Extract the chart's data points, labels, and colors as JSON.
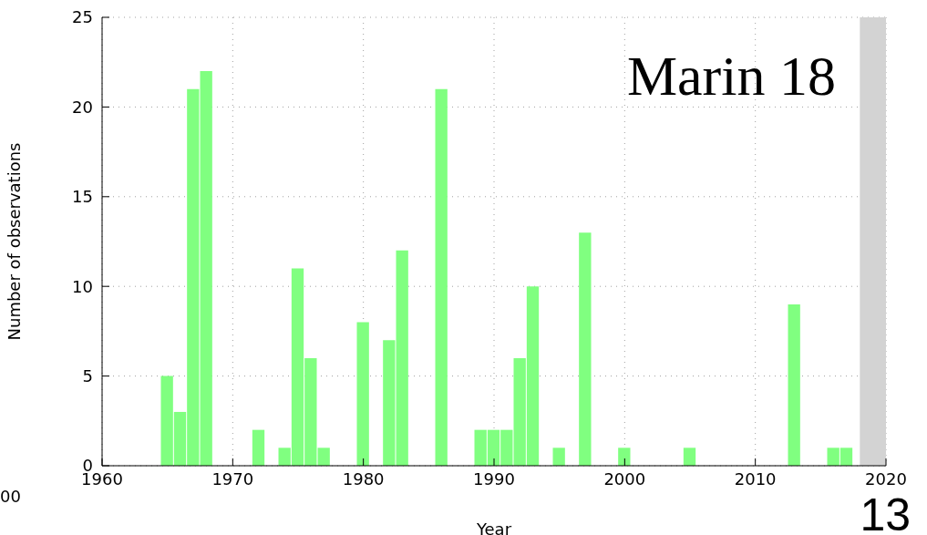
{
  "chart_data": {
    "type": "bar",
    "title": "Marin 18",
    "xlabel": "Year",
    "ylabel": "Number of observations",
    "x": [
      1965,
      1966,
      1967,
      1968,
      1972,
      1974,
      1975,
      1976,
      1977,
      1980,
      1982,
      1983,
      1986,
      1989,
      1990,
      1991,
      1992,
      1993,
      1995,
      1997,
      2000,
      2005,
      2013,
      2016,
      2017
    ],
    "values": [
      5,
      3,
      21,
      22,
      2,
      1,
      11,
      6,
      1,
      8,
      7,
      12,
      21,
      2,
      2,
      2,
      6,
      10,
      1,
      13,
      1,
      1,
      9,
      1,
      1
    ],
    "color": "#80ff80",
    "xlim": [
      1960,
      2020
    ],
    "xticks": [
      1960,
      1970,
      1980,
      1990,
      2000,
      2010,
      2020
    ],
    "ylim": [
      0,
      25
    ],
    "yticks": [
      0,
      5,
      10,
      15,
      20,
      25
    ],
    "grid": true,
    "bands": [
      {
        "axis": "x",
        "from": 2018,
        "to": 2020,
        "color": "#d3d3d3"
      }
    ],
    "annotations": [
      "00",
      "13"
    ]
  }
}
